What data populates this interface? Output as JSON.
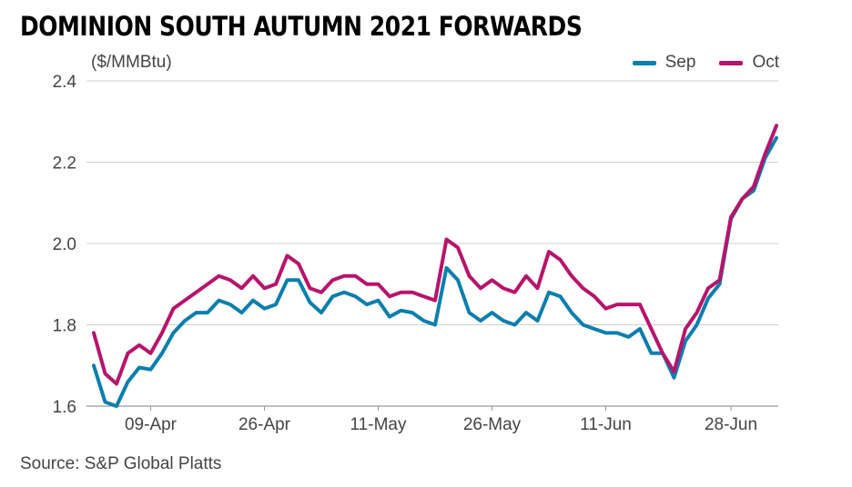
{
  "chart_data": {
    "type": "line",
    "title": "DOMINION SOUTH AUTUMN 2021 FORWARDS",
    "ylabel": "($/MMBtu)",
    "source": "Source: S&P Global Platts",
    "ylim": [
      1.6,
      2.4
    ],
    "yticks": [
      "1.6",
      "1.8",
      "2.0",
      "2.2",
      "2.4"
    ],
    "xticks": [
      {
        "label": "09-Apr",
        "index": 5
      },
      {
        "label": "26-Apr",
        "index": 15
      },
      {
        "label": "11-May",
        "index": 25
      },
      {
        "label": "26-May",
        "index": 35
      },
      {
        "label": "11-Jun",
        "index": 45
      },
      {
        "label": "28-Jun",
        "index": 56
      }
    ],
    "legend_position": "top-right",
    "grid": true,
    "series": [
      {
        "name": "Sep",
        "color": "#0a7fae",
        "values": [
          1.7,
          1.61,
          1.6,
          1.66,
          1.695,
          1.69,
          1.73,
          1.78,
          1.81,
          1.83,
          1.83,
          1.86,
          1.85,
          1.83,
          1.86,
          1.84,
          1.85,
          1.91,
          1.91,
          1.855,
          1.83,
          1.87,
          1.88,
          1.87,
          1.85,
          1.86,
          1.82,
          1.835,
          1.83,
          1.81,
          1.8,
          1.94,
          1.91,
          1.83,
          1.81,
          1.83,
          1.81,
          1.8,
          1.83,
          1.81,
          1.88,
          1.87,
          1.83,
          1.8,
          1.79,
          1.78,
          1.78,
          1.77,
          1.79,
          1.73,
          1.73,
          1.67,
          1.76,
          1.8,
          1.865,
          1.9,
          2.06,
          2.11,
          2.13,
          2.21,
          2.26
        ]
      },
      {
        "name": "Oct",
        "color": "#b8136c",
        "values": [
          1.78,
          1.68,
          1.655,
          1.73,
          1.75,
          1.73,
          1.78,
          1.84,
          1.86,
          1.88,
          1.9,
          1.92,
          1.91,
          1.89,
          1.92,
          1.89,
          1.9,
          1.97,
          1.95,
          1.89,
          1.88,
          1.91,
          1.92,
          1.92,
          1.9,
          1.9,
          1.87,
          1.88,
          1.88,
          1.87,
          1.86,
          2.01,
          1.99,
          1.92,
          1.89,
          1.91,
          1.89,
          1.88,
          1.92,
          1.89,
          1.98,
          1.96,
          1.92,
          1.89,
          1.87,
          1.84,
          1.85,
          1.85,
          1.85,
          1.79,
          1.73,
          1.685,
          1.79,
          1.83,
          1.89,
          1.91,
          2.065,
          2.11,
          2.14,
          2.22,
          2.29
        ]
      }
    ]
  }
}
